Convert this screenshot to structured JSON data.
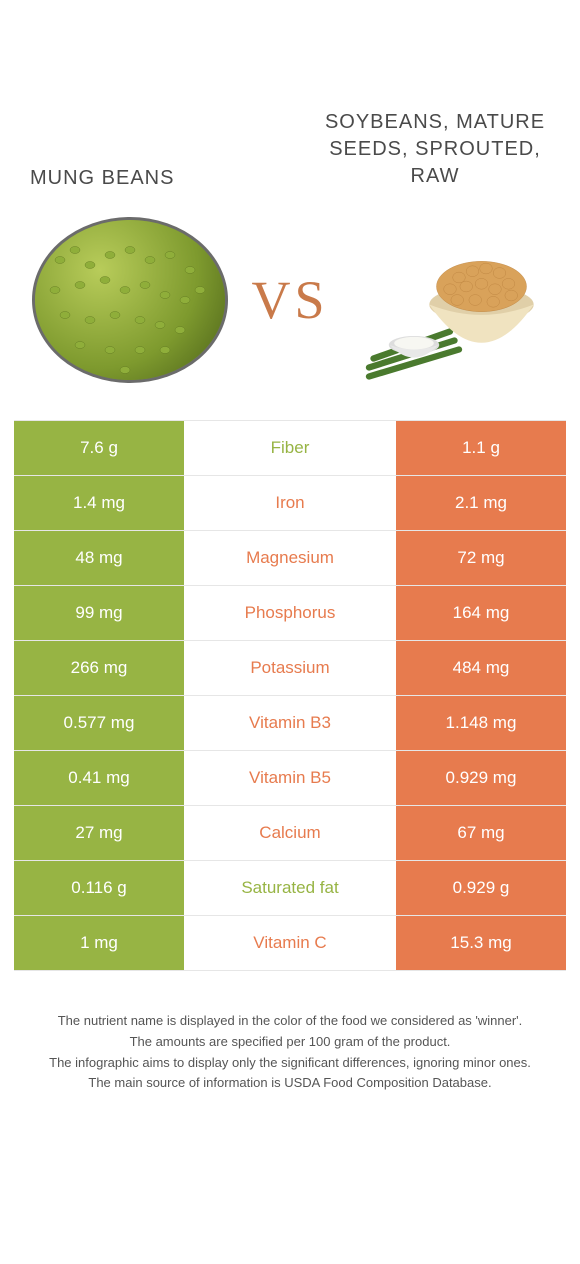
{
  "header": {
    "left_title": "MUNG BEANS",
    "right_title": "SOYBEANS, MATURE SEEDS, SPROUTED, RAW",
    "vs_label": "VS"
  },
  "colors": {
    "left_bg": "#97b444",
    "right_bg": "#e77b4e",
    "mid_bg": "#ffffff",
    "border": "#e6e6e6",
    "left_text": "#97b444",
    "right_text": "#e77b4e",
    "cell_text": "#ffffff"
  },
  "comparison": {
    "rows": [
      {
        "left": "7.6 g",
        "label": "Fiber",
        "right": "1.1 g",
        "winner": "left"
      },
      {
        "left": "1.4 mg",
        "label": "Iron",
        "right": "2.1 mg",
        "winner": "right"
      },
      {
        "left": "48 mg",
        "label": "Magnesium",
        "right": "72 mg",
        "winner": "right"
      },
      {
        "left": "99 mg",
        "label": "Phosphorus",
        "right": "164 mg",
        "winner": "right"
      },
      {
        "left": "266 mg",
        "label": "Potassium",
        "right": "484 mg",
        "winner": "right"
      },
      {
        "left": "0.577 mg",
        "label": "Vitamin B3",
        "right": "1.148 mg",
        "winner": "right"
      },
      {
        "left": "0.41 mg",
        "label": "Vitamin B5",
        "right": "0.929 mg",
        "winner": "right"
      },
      {
        "left": "27 mg",
        "label": "Calcium",
        "right": "67 mg",
        "winner": "right"
      },
      {
        "left": "0.116 g",
        "label": "Saturated fat",
        "right": "0.929 g",
        "winner": "left"
      },
      {
        "left": "1 mg",
        "label": "Vitamin C",
        "right": "15.3 mg",
        "winner": "right"
      }
    ]
  },
  "footnotes": {
    "line1": "The nutrient name is displayed in the color of the food we considered as 'winner'.",
    "line2": "The amounts are specified per 100 gram of the product.",
    "line3": "The infographic aims to display only the significant differences, ignoring minor ones.",
    "line4": "The main source of information is USDA Food Composition Database."
  }
}
